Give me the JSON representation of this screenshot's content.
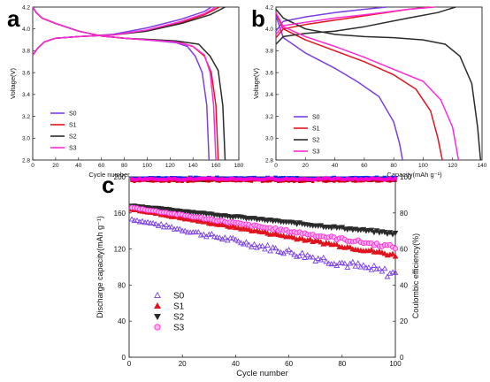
{
  "colors": {
    "S0": "#7b3fe4",
    "S1": "#e0141e",
    "S2": "#2b2b2b",
    "S3": "#ff2bd6",
    "S0_eff": "#222222",
    "S1_eff": "#cc0000",
    "S2_eff": "#0033ee",
    "S3_eff": "#ff00cc"
  },
  "chart_data": [
    {
      "panel": "a",
      "type": "line",
      "title": "",
      "xlabel": "Cycle number",
      "ylabel": "Voltage(V)",
      "xlim": [
        0,
        180
      ],
      "ylim": [
        2.8,
        4.2
      ],
      "xticks": [
        "0",
        "20",
        "40",
        "60",
        "80",
        "100",
        "120",
        "140",
        "160",
        "180"
      ],
      "yticks": [
        "2.8",
        "3.0",
        "3.2",
        "3.4",
        "3.6",
        "3.8",
        "4.0",
        "4.2"
      ],
      "legend_position": "bottom-left",
      "grid": false,
      "series": [
        {
          "name": "S0",
          "charge": [
            [
              0,
              3.76
            ],
            [
              4,
              3.82
            ],
            [
              10,
              3.88
            ],
            [
              20,
              3.915
            ],
            [
              40,
              3.93
            ],
            [
              70,
              3.95
            ],
            [
              100,
              4.01
            ],
            [
              130,
              4.09
            ],
            [
              150,
              4.16
            ],
            [
              156,
              4.2
            ]
          ],
          "discharge": [
            [
              0,
              4.2
            ],
            [
              3,
              4.15
            ],
            [
              8,
              4.1
            ],
            [
              20,
              4.05
            ],
            [
              40,
              3.98
            ],
            [
              60,
              3.935
            ],
            [
              80,
              3.915
            ],
            [
              100,
              3.9
            ],
            [
              125,
              3.875
            ],
            [
              135,
              3.84
            ],
            [
              142,
              3.75
            ],
            [
              148,
              3.6
            ],
            [
              152,
              3.3
            ],
            [
              154,
              2.8
            ]
          ]
        },
        {
          "name": "S1",
          "charge": [
            [
              0,
              3.76
            ],
            [
              4,
              3.82
            ],
            [
              10,
              3.88
            ],
            [
              20,
              3.915
            ],
            [
              40,
              3.93
            ],
            [
              70,
              3.945
            ],
            [
              100,
              3.985
            ],
            [
              130,
              4.06
            ],
            [
              150,
              4.13
            ],
            [
              163,
              4.2
            ]
          ],
          "discharge": [
            [
              0,
              4.2
            ],
            [
              3,
              4.15
            ],
            [
              8,
              4.1
            ],
            [
              20,
              4.05
            ],
            [
              40,
              3.98
            ],
            [
              60,
              3.935
            ],
            [
              80,
              3.915
            ],
            [
              100,
              3.9
            ],
            [
              125,
              3.885
            ],
            [
              140,
              3.84
            ],
            [
              150,
              3.75
            ],
            [
              156,
              3.6
            ],
            [
              160,
              3.3
            ],
            [
              162,
              2.8
            ]
          ]
        },
        {
          "name": "S2",
          "charge": [
            [
              0,
              3.76
            ],
            [
              4,
              3.82
            ],
            [
              10,
              3.88
            ],
            [
              20,
              3.915
            ],
            [
              40,
              3.93
            ],
            [
              70,
              3.945
            ],
            [
              100,
              3.98
            ],
            [
              130,
              4.05
            ],
            [
              155,
              4.13
            ],
            [
              168,
              4.2
            ]
          ],
          "discharge": [
            [
              0,
              4.2
            ],
            [
              3,
              4.15
            ],
            [
              8,
              4.1
            ],
            [
              20,
              4.05
            ],
            [
              40,
              3.98
            ],
            [
              60,
              3.935
            ],
            [
              80,
              3.915
            ],
            [
              100,
              3.905
            ],
            [
              125,
              3.89
            ],
            [
              145,
              3.86
            ],
            [
              155,
              3.75
            ],
            [
              162,
              3.62
            ],
            [
              166,
              3.3
            ],
            [
              168,
              2.8
            ]
          ]
        },
        {
          "name": "S3",
          "charge": [
            [
              0,
              3.76
            ],
            [
              4,
              3.82
            ],
            [
              10,
              3.88
            ],
            [
              20,
              3.915
            ],
            [
              40,
              3.93
            ],
            [
              70,
              3.945
            ],
            [
              100,
              3.99
            ],
            [
              130,
              4.07
            ],
            [
              150,
              4.14
            ],
            [
              160,
              4.2
            ]
          ],
          "discharge": [
            [
              0,
              4.2
            ],
            [
              3,
              4.15
            ],
            [
              8,
              4.1
            ],
            [
              20,
              4.05
            ],
            [
              40,
              3.98
            ],
            [
              60,
              3.935
            ],
            [
              80,
              3.915
            ],
            [
              100,
              3.9
            ],
            [
              125,
              3.88
            ],
            [
              140,
              3.84
            ],
            [
              150,
              3.76
            ],
            [
              155,
              3.6
            ],
            [
              158,
              3.3
            ],
            [
              160,
              2.8
            ]
          ]
        }
      ]
    },
    {
      "panel": "b",
      "type": "line",
      "title": "",
      "xlabel": "Capacity(mAh g⁻¹)",
      "ylabel": "Voltage(V)",
      "xlim": [
        0,
        140
      ],
      "ylim": [
        2.8,
        4.2
      ],
      "xticks": [
        "0",
        "20",
        "40",
        "60",
        "80",
        "100",
        "120",
        "140"
      ],
      "yticks": [
        "2.8",
        "3.0",
        "3.2",
        "3.4",
        "3.6",
        "3.8",
        "4.0",
        "4.2"
      ],
      "legend_position": "bottom-left",
      "grid": false,
      "series": [
        {
          "name": "S0",
          "charge": [
            [
              0,
              3.98
            ],
            [
              5,
              4.07
            ],
            [
              20,
              4.11
            ],
            [
              40,
              4.15
            ],
            [
              60,
              4.18
            ],
            [
              75,
              4.2
            ]
          ],
          "discharge": [
            [
              0,
              4.12
            ],
            [
              5,
              3.92
            ],
            [
              20,
              3.78
            ],
            [
              40,
              3.64
            ],
            [
              55,
              3.52
            ],
            [
              70,
              3.38
            ],
            [
              80,
              3.15
            ],
            [
              84,
              2.95
            ],
            [
              86,
              2.8
            ]
          ]
        },
        {
          "name": "S1",
          "charge": [
            [
              0,
              3.92
            ],
            [
              5,
              4.0
            ],
            [
              20,
              4.04
            ],
            [
              40,
              4.08
            ],
            [
              60,
              4.12
            ],
            [
              90,
              4.18
            ],
            [
              104,
              4.2
            ]
          ],
          "discharge": [
            [
              0,
              4.14
            ],
            [
              5,
              4.0
            ],
            [
              20,
              3.9
            ],
            [
              40,
              3.8
            ],
            [
              60,
              3.7
            ],
            [
              80,
              3.58
            ],
            [
              95,
              3.45
            ],
            [
              105,
              3.25
            ],
            [
              110,
              3.0
            ],
            [
              113,
              2.8
            ]
          ]
        },
        {
          "name": "S2",
          "charge": [
            [
              0,
              3.86
            ],
            [
              5,
              3.93
            ],
            [
              20,
              3.96
            ],
            [
              40,
              3.98
            ],
            [
              60,
              4.02
            ],
            [
              90,
              4.1
            ],
            [
              110,
              4.15
            ],
            [
              122,
              4.2
            ]
          ],
          "discharge": [
            [
              0,
              4.18
            ],
            [
              5,
              4.1
            ],
            [
              20,
              4.0
            ],
            [
              40,
              3.95
            ],
            [
              60,
              3.93
            ],
            [
              80,
              3.92
            ],
            [
              100,
              3.9
            ],
            [
              115,
              3.86
            ],
            [
              125,
              3.75
            ],
            [
              133,
              3.5
            ],
            [
              137,
              3.1
            ],
            [
              139,
              2.8
            ]
          ]
        },
        {
          "name": "S3",
          "charge": [
            [
              0,
              3.95
            ],
            [
              5,
              4.03
            ],
            [
              20,
              4.06
            ],
            [
              40,
              4.1
            ],
            [
              60,
              4.13
            ],
            [
              90,
              4.18
            ],
            [
              108,
              4.2
            ]
          ],
          "discharge": [
            [
              0,
              4.15
            ],
            [
              5,
              4.02
            ],
            [
              20,
              3.93
            ],
            [
              40,
              3.84
            ],
            [
              60,
              3.74
            ],
            [
              80,
              3.63
            ],
            [
              100,
              3.52
            ],
            [
              112,
              3.35
            ],
            [
              120,
              3.1
            ],
            [
              124,
              2.8
            ]
          ]
        }
      ]
    },
    {
      "panel": "c",
      "type": "scatter",
      "title": "",
      "xlabel": "Cycle number",
      "ylabel": "Discharge capacity(mAh g⁻¹)",
      "y2label": "Coulombic efficiency(%)",
      "xlim": [
        0,
        100
      ],
      "ylim": [
        0,
        200
      ],
      "y2lim": [
        0,
        100
      ],
      "xticks": [
        "0",
        "20",
        "40",
        "60",
        "80",
        "100"
      ],
      "yticks": [
        "0",
        "40",
        "80",
        "120",
        "160",
        "200"
      ],
      "y2ticks": [
        "0",
        "20",
        "40",
        "60",
        "80",
        "100"
      ],
      "legend_position": "center-left",
      "grid": false,
      "series": [
        {
          "name": "S0",
          "marker": "triangle-up",
          "capacity_start": 153,
          "capacity_end": 92,
          "capacity_noise": 4,
          "coulombic_efficiency": 98.2
        },
        {
          "name": "S1",
          "marker": "triangle-up",
          "capacity_start": 164,
          "capacity_end": 113,
          "capacity_noise": 1.5,
          "coulombic_efficiency": 97.8
        },
        {
          "name": "S2",
          "marker": "triangle-down",
          "capacity_start": 168,
          "capacity_end": 137,
          "capacity_noise": 1,
          "coulombic_efficiency": 99.3
        },
        {
          "name": "S3",
          "marker": "circle",
          "capacity_start": 166,
          "capacity_end": 122,
          "capacity_noise": 1.5,
          "coulombic_efficiency": 98.8
        }
      ]
    }
  ],
  "panel_letters": {
    "a": "a",
    "b": "b",
    "c": "c"
  }
}
